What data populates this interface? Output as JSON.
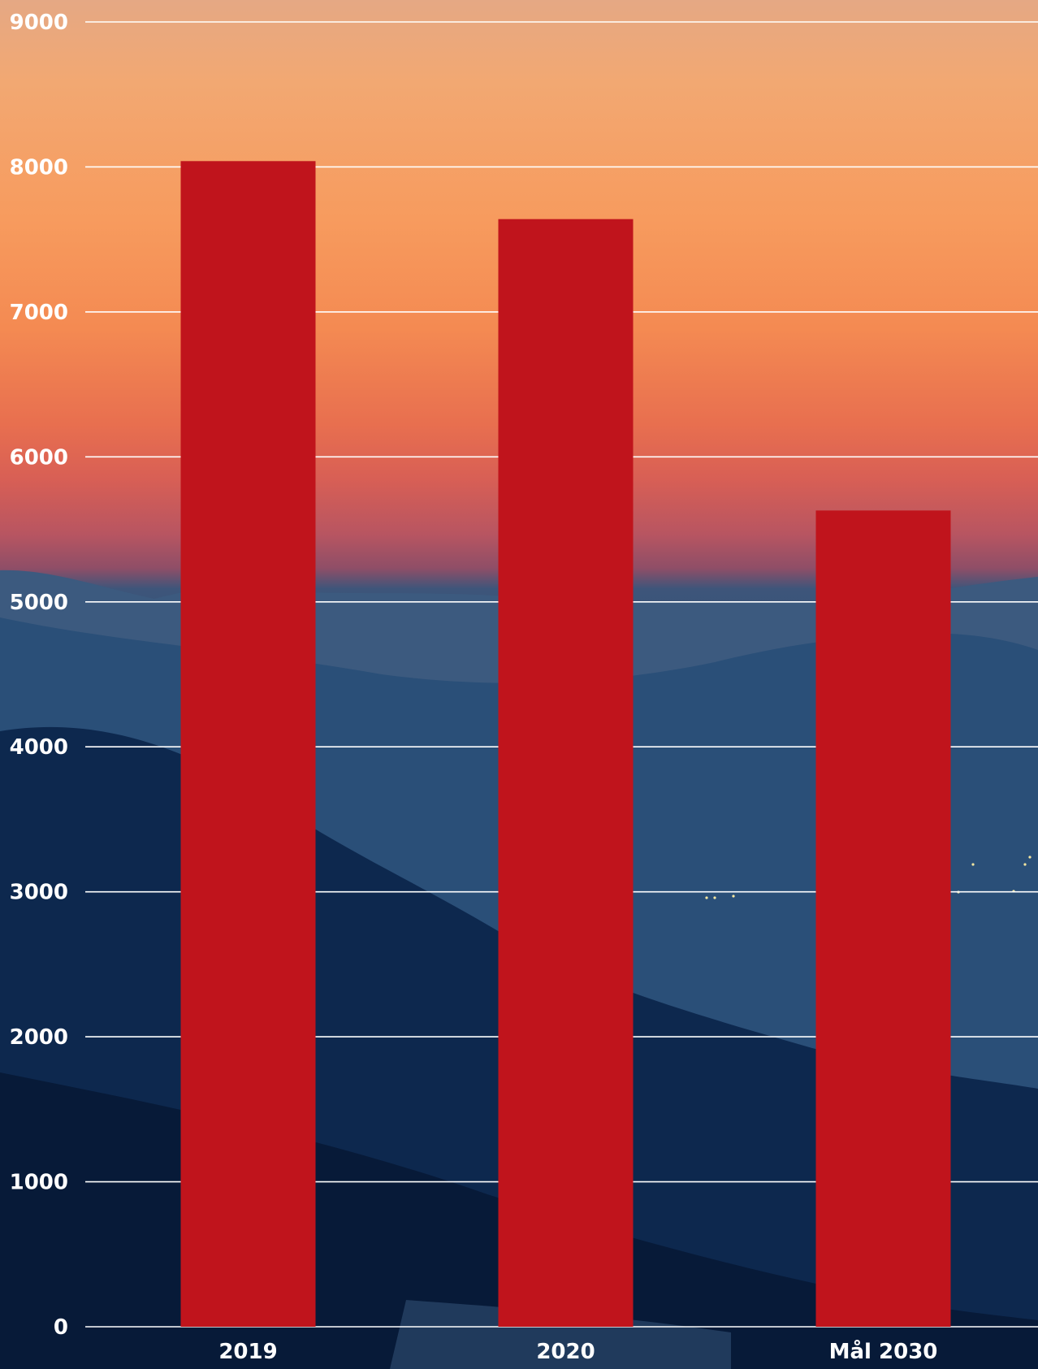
{
  "chart_data": {
    "type": "bar",
    "title": "",
    "xlabel": "",
    "ylabel": "",
    "categories": [
      "2019",
      "2020",
      "Mål 2030"
    ],
    "values": [
      8040,
      7640,
      5630
    ],
    "ylim": [
      0,
      9000
    ],
    "yticks": [
      0,
      1000,
      2000,
      3000,
      4000,
      5000,
      6000,
      7000,
      8000,
      9000
    ],
    "grid": true,
    "legend": "none",
    "bar_color": "#c0141c",
    "grid_color": "#ffffff",
    "label_color": "#ffffff"
  }
}
